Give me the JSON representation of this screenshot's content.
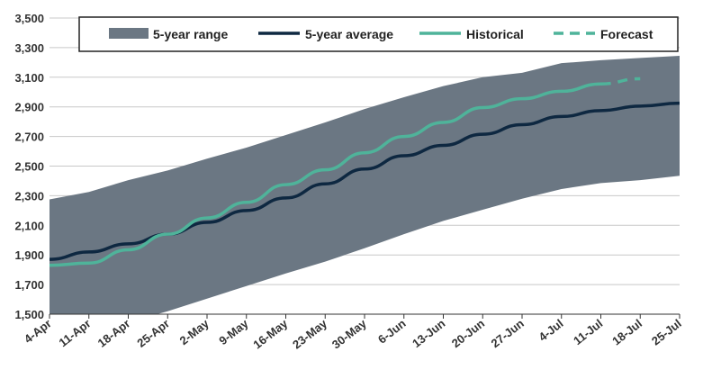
{
  "chart_data": {
    "type": "line",
    "title": "",
    "xlabel": "",
    "ylabel": "",
    "ylim": [
      1500,
      3500
    ],
    "yticks": [
      "1,500",
      "1,700",
      "1,900",
      "2,100",
      "2,300",
      "2,500",
      "2,700",
      "2,900",
      "3,100",
      "3,300",
      "3,500"
    ],
    "ytick_values": [
      1500,
      1700,
      1900,
      2100,
      2300,
      2500,
      2700,
      2900,
      3100,
      3300,
      3500
    ],
    "categories": [
      "4-Apr",
      "11-Apr",
      "18-Apr",
      "25-Apr",
      "2-May",
      "9-May",
      "16-May",
      "23-May",
      "30-May",
      "6-Jun",
      "13-Jun",
      "20-Jun",
      "27-Jun",
      "4-Jul",
      "11-Jul",
      "18-Jul",
      "25-Jul"
    ],
    "grid": "horizontal",
    "legend_position": "top",
    "legend": [
      {
        "key": "range",
        "label": "5-year range",
        "swatch": "band"
      },
      {
        "key": "average",
        "label": "5-year average",
        "swatch": "line"
      },
      {
        "key": "historical",
        "label": "Historical",
        "swatch": "line"
      },
      {
        "key": "forecast",
        "label": "Forecast",
        "swatch": "dashed"
      }
    ],
    "series": [
      {
        "name": "5-year range",
        "kind": "band",
        "color": "#6b7783",
        "upper": [
          2275,
          2325,
          2405,
          2470,
          2550,
          2625,
          2710,
          2795,
          2885,
          2965,
          3040,
          3100,
          3130,
          3195,
          3215,
          3230,
          3245
        ],
        "lower": [
          1450,
          1440,
          1445,
          1520,
          1605,
          1690,
          1775,
          1855,
          1945,
          2040,
          2130,
          2205,
          2280,
          2345,
          2385,
          2405,
          2435
        ]
      },
      {
        "name": "5-year average",
        "kind": "line",
        "color": "#0e2841",
        "values": [
          1870,
          1920,
          1975,
          2040,
          2120,
          2200,
          2285,
          2380,
          2480,
          2570,
          2640,
          2715,
          2780,
          2835,
          2875,
          2905,
          2925
        ]
      },
      {
        "name": "Historical",
        "kind": "line",
        "color": "#4fb39a",
        "values": [
          1830,
          1845,
          1935,
          2040,
          2150,
          2255,
          2375,
          2475,
          2590,
          2700,
          2795,
          2895,
          2955,
          3005,
          3055,
          null,
          null
        ]
      },
      {
        "name": "Forecast",
        "kind": "dashed",
        "color": "#4fb39a",
        "values": [
          null,
          null,
          null,
          null,
          null,
          null,
          null,
          null,
          null,
          null,
          null,
          null,
          null,
          null,
          3055,
          3090,
          null
        ]
      }
    ]
  }
}
